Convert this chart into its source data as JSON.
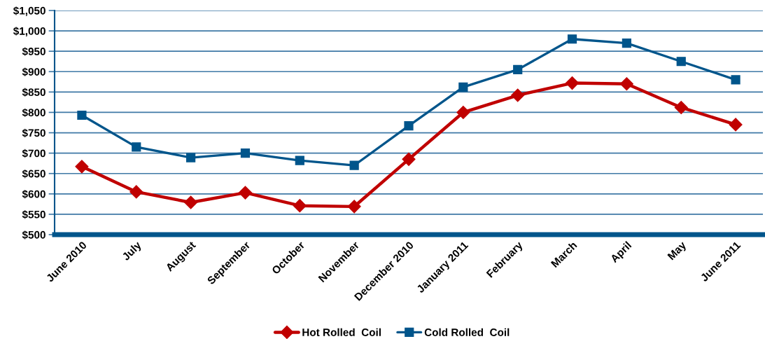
{
  "chart_data": {
    "type": "line",
    "categories": [
      "June 2010",
      "July",
      "August",
      "September",
      "October",
      "November",
      "December 2010",
      "January 2011",
      "February",
      "March",
      "April",
      "May",
      "June 2011"
    ],
    "series": [
      {
        "name": "Hot Rolled  Coil",
        "color": "#c00000",
        "marker": "diamond",
        "values": [
          667,
          605,
          579,
          603,
          571,
          569,
          685,
          800,
          842,
          872,
          870,
          812,
          770
        ]
      },
      {
        "name": "Cold Rolled  Coil",
        "color": "#00558b",
        "marker": "square",
        "values": [
          793,
          715,
          689,
          700,
          682,
          670,
          767,
          862,
          905,
          980,
          970,
          925,
          880
        ]
      }
    ],
    "ylim": [
      500,
      1050
    ],
    "yticks": [
      {
        "value": 500,
        "label": "$500"
      },
      {
        "value": 550,
        "label": "$550"
      },
      {
        "value": 600,
        "label": "$600"
      },
      {
        "value": 650,
        "label": "$650"
      },
      {
        "value": 700,
        "label": "$700"
      },
      {
        "value": 750,
        "label": "$750"
      },
      {
        "value": 800,
        "label": "$800"
      },
      {
        "value": 850,
        "label": "$850"
      },
      {
        "value": 900,
        "label": "$900"
      },
      {
        "value": 950,
        "label": "$950"
      },
      {
        "value": 1000,
        "label": "$1,000"
      },
      {
        "value": 1050,
        "label": "$1,050"
      }
    ],
    "grid": "y",
    "legend": "bottom",
    "line_style": "solid"
  }
}
